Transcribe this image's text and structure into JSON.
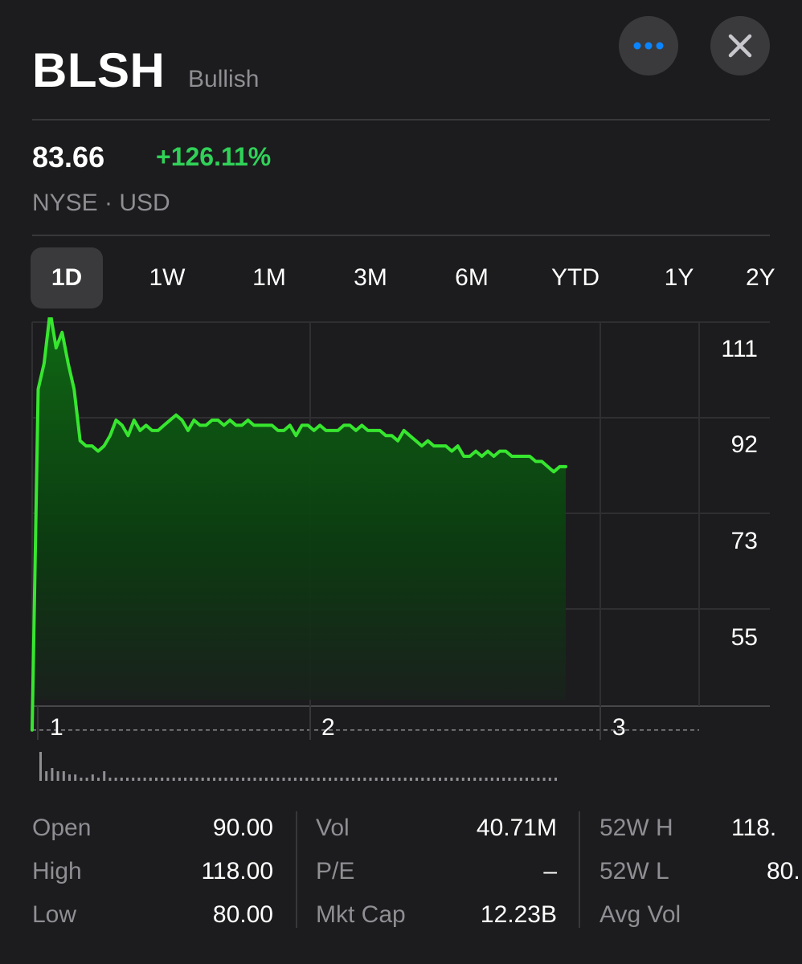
{
  "header": {
    "ticker": "BLSH",
    "company": "Bullish",
    "more_icon": "ellipsis-icon",
    "close_icon": "close-icon",
    "more_color": "#0a84ff"
  },
  "quote": {
    "price": "83.66",
    "change": "+126.11%",
    "change_color": "#30d158",
    "exchange": "NYSE · USD"
  },
  "ranges": {
    "selected": "1D",
    "items": [
      "1D",
      "1W",
      "1M",
      "3M",
      "6M",
      "YTD",
      "1Y",
      "2Y"
    ]
  },
  "chart_data": {
    "type": "area",
    "line_color": "#37e62f",
    "y_tick_labels": [
      "111",
      "92",
      "73",
      "55"
    ],
    "x_tick_labels": [
      "1",
      "2",
      "3"
    ],
    "grid": true,
    "note_price_series": [
      37,
      103,
      108,
      118,
      111,
      114,
      108,
      103,
      93,
      92,
      92,
      91,
      92,
      94,
      97,
      96,
      94,
      97,
      95,
      96,
      95,
      95,
      96,
      97,
      98,
      97,
      95,
      97,
      96,
      96,
      97,
      97,
      96,
      97,
      96,
      96,
      97,
      96,
      96,
      96,
      96,
      95,
      95,
      96,
      94,
      96,
      96,
      95,
      96,
      95,
      95,
      95,
      96,
      96,
      95,
      96,
      95,
      95,
      95,
      94,
      94,
      93,
      95,
      94,
      93,
      92,
      93,
      92,
      92,
      92,
      91,
      92,
      90,
      90,
      91,
      90,
      91,
      90,
      91,
      91,
      90,
      90,
      90,
      90,
      89,
      89,
      88,
      87,
      88,
      88
    ],
    "volume_series": [
      9,
      3,
      4,
      3,
      3,
      2,
      2,
      1,
      1,
      2,
      1,
      3,
      1,
      1,
      1,
      1,
      1,
      1,
      1,
      1,
      1,
      1,
      1,
      1,
      1,
      1,
      1,
      1,
      1,
      1,
      1,
      1,
      1,
      1,
      1,
      1,
      1,
      1,
      1,
      1,
      1,
      1,
      1,
      1,
      1,
      1,
      1,
      1,
      1,
      1,
      1,
      1,
      1,
      1,
      1,
      1,
      1,
      1,
      1,
      1,
      1,
      1,
      1,
      1,
      1,
      1,
      1,
      1,
      1,
      1,
      1,
      1,
      1,
      1,
      1,
      1,
      1,
      1,
      1,
      1,
      1,
      1,
      1,
      1,
      1,
      1,
      1,
      1,
      1,
      1
    ],
    "reference_line_value": 37
  },
  "stats": {
    "col1": [
      {
        "label": "Open",
        "value": "90.00"
      },
      {
        "label": "High",
        "value": "118.00"
      },
      {
        "label": "Low",
        "value": "80.00"
      }
    ],
    "col2": [
      {
        "label": "Vol",
        "value": "40.71M"
      },
      {
        "label": "P/E",
        "value": "–"
      },
      {
        "label": "Mkt Cap",
        "value": "12.23B"
      }
    ],
    "col3": [
      {
        "label": "52W H",
        "value": "118."
      },
      {
        "label": "52W L",
        "value": "80."
      },
      {
        "label": "Avg Vol",
        "value": ""
      }
    ]
  }
}
